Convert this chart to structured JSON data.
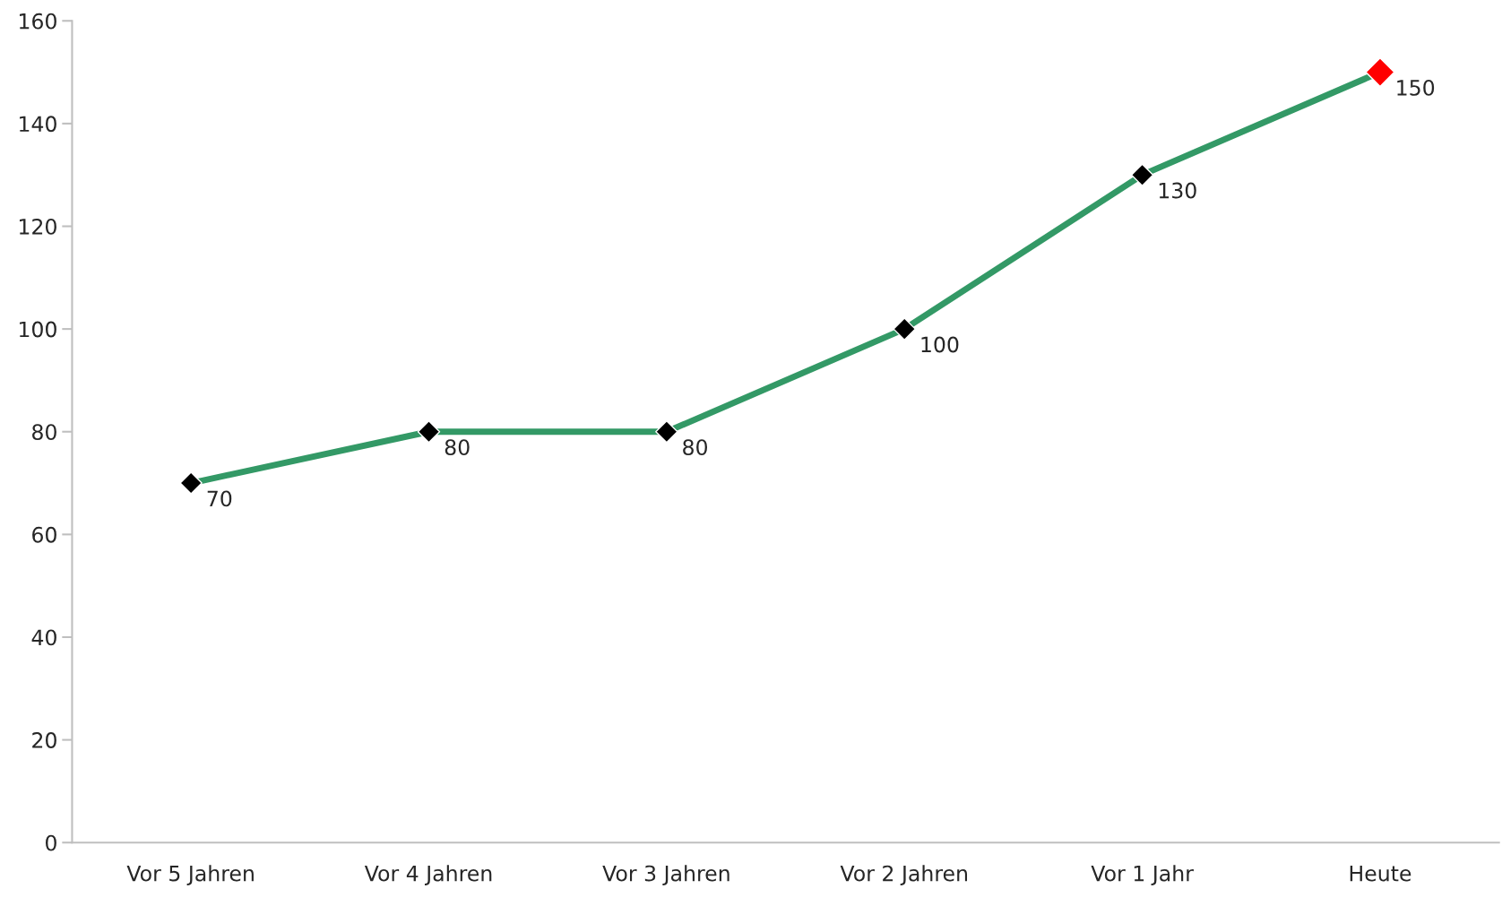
{
  "chart_data": {
    "type": "line",
    "categories": [
      "Vor 5 Jahren",
      "Vor 4 Jahren",
      "Vor 3 Jahren",
      "Vor 2 Jahren",
      "Vor 1 Jahr",
      "Heute"
    ],
    "series": [
      {
        "color": "#339966",
        "colors": [
          "#000000",
          "#000000",
          "#000000",
          "#000000",
          "#000000",
          "#ff0000"
        ],
        "values": [
          70,
          80,
          80,
          100,
          130,
          150
        ]
      }
    ],
    "ylim": [
      0,
      160
    ],
    "yticks": [
      0,
      20,
      40,
      60,
      80,
      100,
      120,
      140,
      160
    ],
    "marker": "diamond",
    "line_style": "solid",
    "data_labels": true,
    "grid": false,
    "legend": false
  }
}
